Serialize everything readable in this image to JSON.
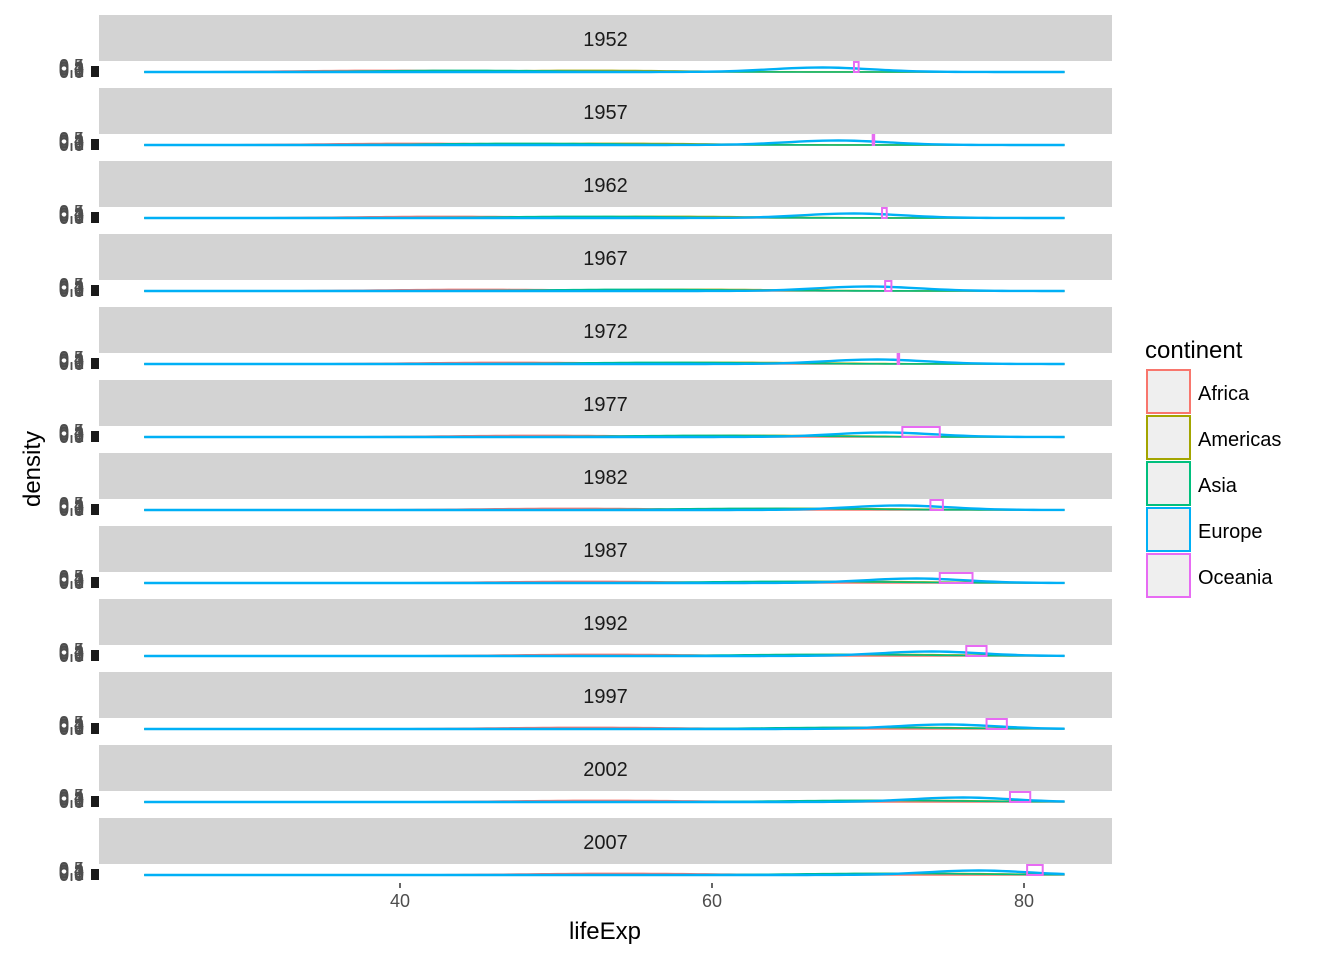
{
  "chart_data": {
    "type": "area",
    "facet_by": "year",
    "panels": [
      "1952",
      "1957",
      "1962",
      "1967",
      "1972",
      "1977",
      "1982",
      "1987",
      "1992",
      "1997",
      "2002",
      "2007"
    ],
    "xlabel": "lifeExp",
    "ylabel": "density",
    "x_ticks": [
      40,
      60,
      80
    ],
    "xlim": [
      22,
      87
    ],
    "legend": {
      "title": "continent",
      "position": "right",
      "entries": [
        "Africa",
        "Americas",
        "Asia",
        "Europe",
        "Oceania"
      ]
    },
    "series": [
      {
        "name": "Africa",
        "color": "#F8766D",
        "modes": [
          39,
          41,
          43,
          45,
          47,
          49,
          51,
          52,
          53,
          52,
          53,
          54
        ]
      },
      {
        "name": "Americas",
        "color": "#A3A500",
        "modes": [
          52,
          54,
          57,
          59,
          61,
          63,
          66,
          68,
          70,
          71,
          72,
          73
        ]
      },
      {
        "name": "Asia",
        "color": "#00BF7D",
        "modes": [
          44,
          48,
          52,
          55,
          57,
          60,
          63,
          65,
          67,
          69,
          70,
          71
        ]
      },
      {
        "name": "Europe",
        "color": "#00B0F6",
        "modes": [
          67,
          68,
          69,
          70,
          70.5,
          71,
          72,
          73,
          74,
          75,
          76,
          77
        ]
      },
      {
        "name": "Oceania",
        "color": "#E76BF3",
        "ranges": [
          [
            69.1,
            69.4
          ],
          [
            70.3,
            70.3
          ],
          [
            70.9,
            71.2
          ],
          [
            71.1,
            71.5
          ],
          [
            71.9,
            71.9
          ],
          [
            72.2,
            74.6
          ],
          [
            74.0,
            74.8
          ],
          [
            74.6,
            76.7
          ],
          [
            76.3,
            77.6
          ],
          [
            77.6,
            78.9
          ],
          [
            79.1,
            80.4
          ],
          [
            80.2,
            81.2
          ]
        ]
      }
    ]
  }
}
